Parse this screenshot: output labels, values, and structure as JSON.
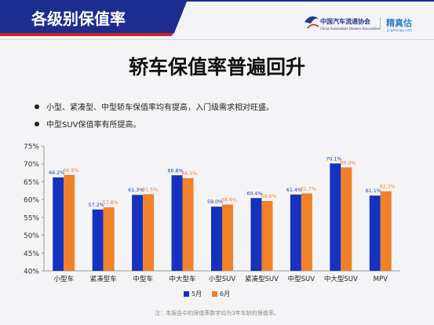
{
  "header": {
    "title": "各级别保值率",
    "logo_cada": {
      "name": "中国汽车流通协会",
      "sub": "China Automobile Dealers Association"
    },
    "logo_jzg": {
      "name": "精真估",
      "sub": "jingzhengu.com"
    }
  },
  "headline": "轿车保值率普遍回升",
  "bullets": [
    "小型、紧凑型、中型轿车保值率均有提高，入门级需求相对旺盛。",
    "中型SUV保值率有所提高。"
  ],
  "footnote": "注：本报告中的保值率数字均为3年车龄的保值率。",
  "colors": {
    "header_bar": "#1c2d8f",
    "header_accent": "#cc1f25",
    "may": "#1531c0",
    "june": "#f0812a",
    "june_label": "#f0812a",
    "may_label": "#1c3bbd"
  },
  "chart_data": {
    "type": "bar",
    "categories": [
      "小型车",
      "紧凑型车",
      "中型车",
      "中大型车",
      "小型SUV",
      "紧凑型SUV",
      "中型SUV",
      "中大型SUV",
      "MPV"
    ],
    "series": [
      {
        "name": "5月",
        "values": [
          66.2,
          57.2,
          61.3,
          66.8,
          58.0,
          60.4,
          61.4,
          70.1,
          61.1
        ],
        "labels": [
          "66.2%",
          "57.2%",
          "61.3%",
          "66.8%",
          "58.0%",
          "60.4%",
          "61.4%",
          "70.1%",
          "61.1%"
        ]
      },
      {
        "name": "6月",
        "values": [
          66.9,
          57.8,
          61.5,
          66.0,
          58.6,
          59.6,
          61.7,
          69.0,
          62.3
        ],
        "labels": [
          "66.9%",
          "57.8%",
          "61.5%",
          "66.0%",
          "58.6%",
          "59.6%",
          "61.7%",
          "69.0%",
          "62.3%"
        ]
      }
    ],
    "yticks": [
      "40%",
      "45%",
      "50%",
      "55%",
      "60%",
      "65%",
      "70%",
      "75%"
    ],
    "ylim": [
      40,
      75
    ],
    "ytick_step": 5,
    "legend_position": "bottom",
    "grid": false
  }
}
